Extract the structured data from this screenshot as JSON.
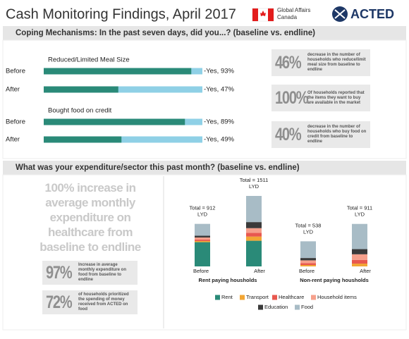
{
  "header": {
    "title": "Cash Monitoring Findings, April 2017",
    "partner_line1": "Global Affairs",
    "partner_line2": "Canada",
    "logo": "ACTED"
  },
  "section1": {
    "title": "Coping Mechanisms:  In the past seven days, did you...? (baseline vs. endline)"
  },
  "section2": {
    "title": "What was your expenditure/sector this past month? (baseline vs. endline)"
  },
  "stats_right": [
    {
      "number": "46%",
      "text": "decrease in the number of households who reduce/limit meal size from baseline to endline"
    },
    {
      "number": "100%",
      "text": "Of households reported that the items they want to buy are available in the market"
    },
    {
      "number": "40%",
      "text": "decrease in the number of households who buy food on credit from baseline to endline"
    }
  ],
  "headline": "100% increase in average monthly expenditure on healthcare from baseline to endline",
  "stats_left": [
    {
      "number": "97%",
      "text": "Increase in average monthly expenditure on food from baseline to endline"
    },
    {
      "number": "72%",
      "text": "of households prioritized the spending of money received from ACTED on food"
    }
  ],
  "chart_data": [
    {
      "type": "hbar",
      "group_labels": [
        "Reduced/Limited Meal Size",
        "Bought food on credit"
      ],
      "categories": [
        "Before",
        "After",
        "Before",
        "After"
      ],
      "values": [
        93,
        47,
        89,
        49
      ],
      "value_labels": [
        "-Yes, 93%",
        "-Yes, 47%",
        "-Yes, 89%",
        "-Yes, 49%"
      ],
      "color": "#2a8a78",
      "rest_color": "#8fd0e6",
      "xlim": [
        0,
        100
      ]
    },
    {
      "type": "stacked_bar",
      "group_labels": [
        "Rent paying housholds",
        "Non-rent paying housholds"
      ],
      "categories": [
        "Before",
        "After",
        "Before",
        "After"
      ],
      "total_labels": [
        [
          "Total = 912",
          "LYD"
        ],
        [
          "Total = 1511",
          "LYD"
        ],
        [
          "Total = 538",
          "LYD"
        ],
        [
          "Total = 911",
          "LYD"
        ]
      ],
      "series": [
        {
          "name": "Rent",
          "color": "#2a8a78",
          "values": [
            520,
            550,
            0,
            0
          ]
        },
        {
          "name": "Transport",
          "color": "#f2a634",
          "values": [
            25,
            90,
            30,
            60
          ]
        },
        {
          "name": "Healthcare",
          "color": "#e8584f",
          "values": [
            30,
            80,
            40,
            80
          ]
        },
        {
          "name": "Household items",
          "color": "#f6a08c",
          "values": [
            45,
            100,
            60,
            120
          ]
        },
        {
          "name": "Education",
          "color": "#3a3a3a",
          "values": [
            40,
            130,
            50,
            110
          ]
        },
        {
          "name": "Food",
          "color": "#a8bcc6",
          "values": [
            252,
            561,
            358,
            541
          ]
        }
      ]
    }
  ]
}
